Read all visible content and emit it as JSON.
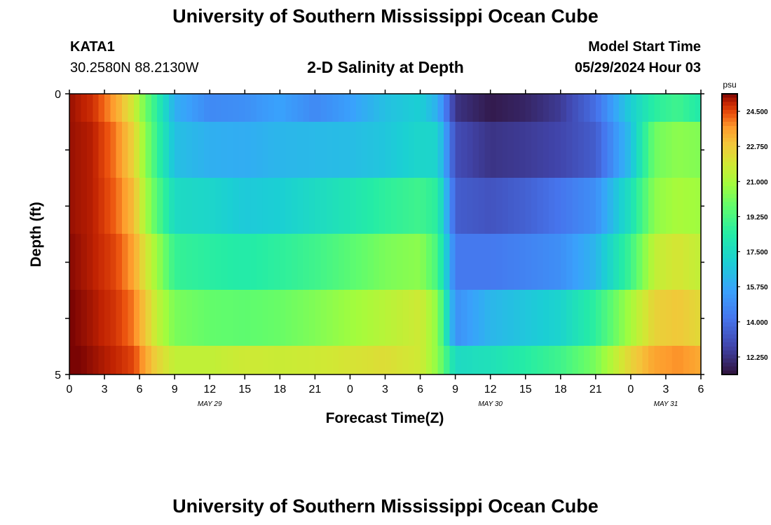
{
  "header": {
    "title": "University of Southern Mississippi Ocean Cube",
    "station_id": "KATA1",
    "station_coords": "30.2580N  88.2130W",
    "plot_title": "2-D Salinity at Depth",
    "model_start_label": "Model Start Time",
    "model_start_value": "05/29/2024 Hour 03"
  },
  "footer": {
    "title": "University of Southern Mississippi Ocean Cube"
  },
  "chart_data": {
    "type": "heatmap",
    "xlabel": "Forecast Time(Z)",
    "ylabel": "Depth (ft)",
    "x_tick_labels": [
      "0",
      "3",
      "6",
      "9",
      "12",
      "15",
      "18",
      "21",
      "0",
      "3",
      "6",
      "9",
      "12",
      "15",
      "18",
      "21",
      "0",
      "3",
      "6"
    ],
    "date_labels": [
      {
        "text": "MAY 29",
        "hour": 12
      },
      {
        "text": "MAY 30",
        "hour": 36
      },
      {
        "text": "MAY 31",
        "hour": 51
      }
    ],
    "x_range_hours": [
      0,
      54
    ],
    "y_range_ft": [
      0,
      5
    ],
    "y_tick_labels": [
      "0",
      "5"
    ],
    "colorbar": {
      "unit": "psu",
      "min": 11.375,
      "max": 25.375,
      "tick_labels": [
        "24.500",
        "22.750",
        "21.000",
        "19.250",
        "17.500",
        "15.750",
        "14.000",
        "12.250"
      ],
      "tick_values": [
        24.5,
        22.75,
        21.0,
        19.25,
        17.5,
        15.75,
        14.0,
        12.25
      ]
    },
    "control_hours": [
      0,
      2,
      4,
      5.5,
      6.5,
      7.5,
      9,
      12,
      15,
      18,
      21,
      24,
      27,
      30,
      31.5,
      33,
      36,
      39,
      42,
      45,
      48,
      50,
      52,
      54
    ],
    "rows": [
      {
        "depth_ft": 0.5,
        "values": [
          25.2,
          24.8,
          23.5,
          21.8,
          20.0,
          18.5,
          16.0,
          14.8,
          15.0,
          15.6,
          14.8,
          15.5,
          16.5,
          17.0,
          16.0,
          12.3,
          11.6,
          11.9,
          12.5,
          14.0,
          17.0,
          18.5,
          19.0,
          18.2
        ]
      },
      {
        "depth_ft": 1.25,
        "values": [
          25.2,
          25.0,
          24.0,
          22.5,
          20.5,
          18.8,
          16.5,
          16.0,
          15.9,
          16.2,
          16.3,
          16.4,
          16.7,
          17.3,
          17.2,
          13.0,
          12.3,
          12.5,
          12.8,
          13.5,
          16.5,
          20.0,
          20.5,
          20.3
        ]
      },
      {
        "depth_ft": 2.0,
        "values": [
          25.2,
          25.0,
          24.2,
          23.0,
          21.0,
          19.5,
          17.5,
          17.3,
          16.8,
          17.0,
          17.5,
          18.0,
          18.6,
          19.0,
          18.5,
          13.5,
          13.2,
          13.6,
          14.2,
          15.0,
          17.8,
          20.5,
          21.0,
          20.8
        ]
      },
      {
        "depth_ft": 3.0,
        "values": [
          25.3,
          25.0,
          24.5,
          23.5,
          22.0,
          20.8,
          18.8,
          18.5,
          18.3,
          18.6,
          19.0,
          19.6,
          20.2,
          20.5,
          19.2,
          14.3,
          14.3,
          14.6,
          15.0,
          16.2,
          19.0,
          21.5,
          22.0,
          21.5
        ]
      },
      {
        "depth_ft": 4.0,
        "values": [
          25.4,
          25.1,
          24.7,
          24.0,
          22.8,
          21.5,
          20.2,
          19.8,
          19.7,
          19.9,
          20.3,
          20.8,
          21.3,
          21.8,
          20.5,
          15.0,
          16.2,
          16.7,
          17.2,
          18.6,
          21.0,
          22.5,
          22.8,
          22.3
        ]
      },
      {
        "depth_ft": 4.75,
        "values": [
          25.5,
          25.2,
          24.9,
          24.5,
          23.5,
          22.5,
          21.5,
          21.5,
          21.8,
          21.7,
          21.8,
          22.0,
          22.2,
          21.8,
          20.5,
          17.5,
          17.8,
          18.4,
          19.0,
          20.2,
          22.5,
          23.5,
          23.8,
          23.4
        ]
      }
    ]
  }
}
